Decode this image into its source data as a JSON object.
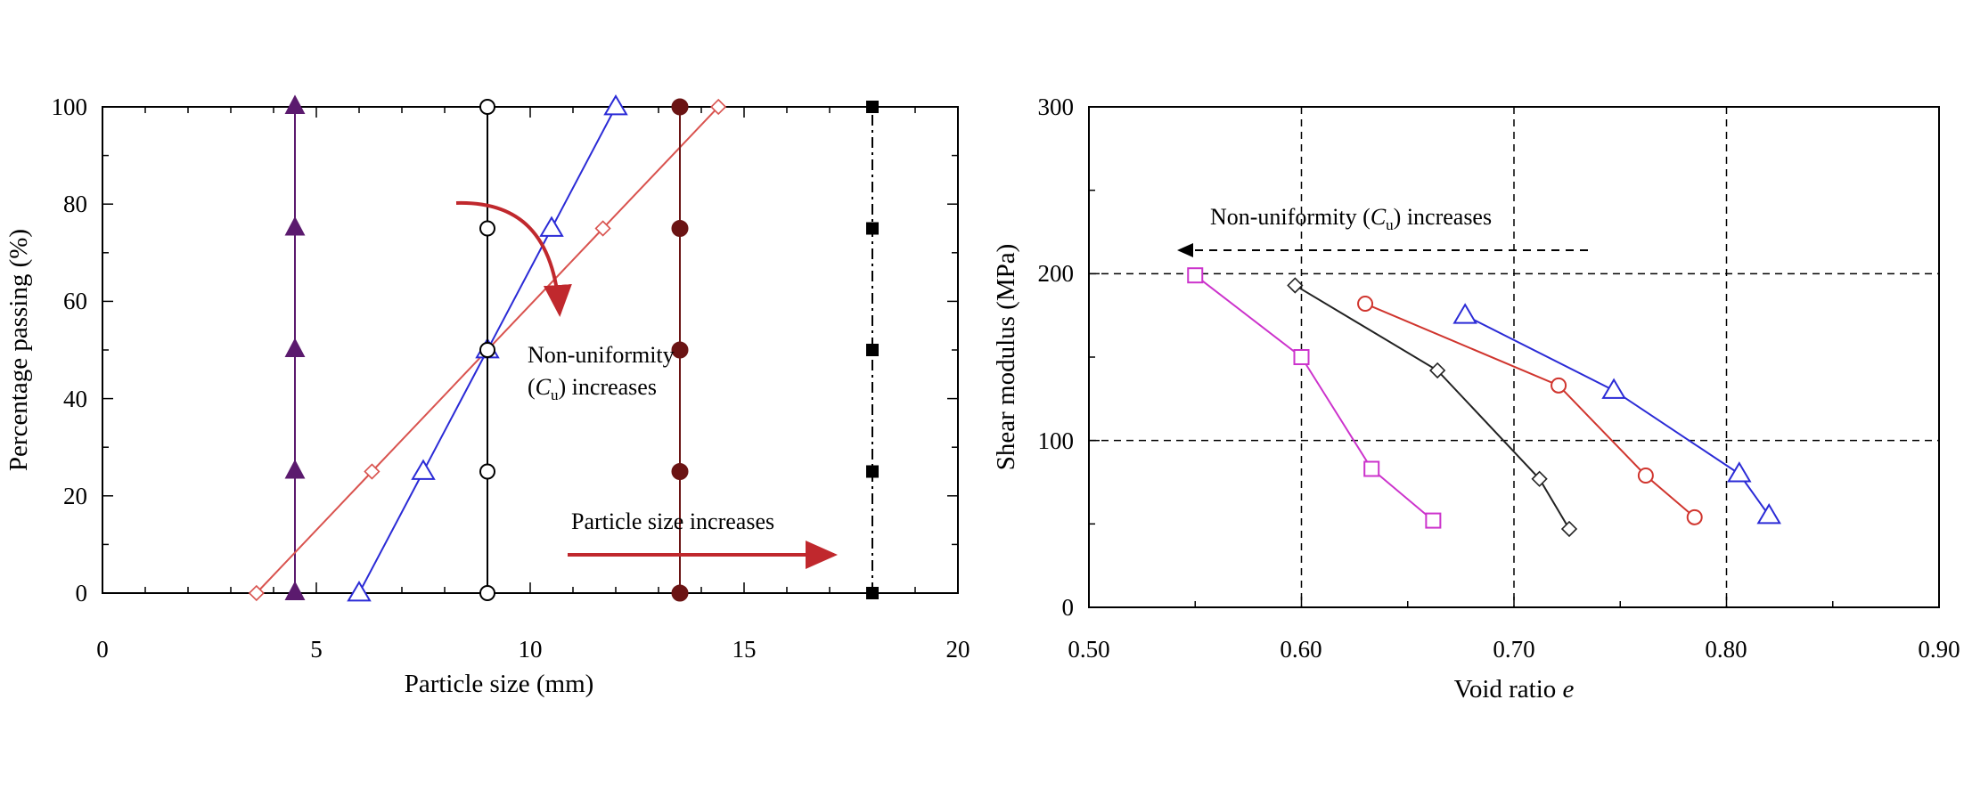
{
  "chart_data": [
    {
      "type": "line",
      "xlabel": "Particle size (mm)",
      "ylabel": "Percentage passing (%)",
      "xlim": [
        0,
        20
      ],
      "ylim": [
        0,
        100
      ],
      "x_ticks": [
        "0",
        "5",
        "10",
        "15",
        "20"
      ],
      "y_ticks": [
        "0",
        "20",
        "40",
        "60",
        "80",
        "100"
      ],
      "grid": false,
      "series": [
        {
          "marker": "filled-triangle",
          "color": "#5b1a6e",
          "dash": "solid",
          "points": [
            [
              4.5,
              0
            ],
            [
              4.5,
              25
            ],
            [
              4.5,
              50
            ],
            [
              4.5,
              75
            ],
            [
              4.5,
              100
            ]
          ]
        },
        {
          "marker": "open-diamond",
          "color": "#d9534f",
          "dash": "solid",
          "points": [
            [
              3.6,
              0
            ],
            [
              6.3,
              25
            ],
            [
              9.0,
              50
            ],
            [
              11.7,
              75
            ],
            [
              14.4,
              100
            ]
          ]
        },
        {
          "marker": "open-triangle",
          "color": "#2b2bd6",
          "dash": "solid",
          "points": [
            [
              6.0,
              0
            ],
            [
              7.5,
              25
            ],
            [
              9.0,
              50
            ],
            [
              10.5,
              75
            ],
            [
              12.0,
              100
            ]
          ]
        },
        {
          "marker": "open-circle",
          "color": "#000000",
          "dash": "solid",
          "points": [
            [
              9.0,
              0
            ],
            [
              9.0,
              25
            ],
            [
              9.0,
              50
            ],
            [
              9.0,
              75
            ],
            [
              9.0,
              100
            ]
          ]
        },
        {
          "marker": "filled-circle",
          "color": "#6b1414",
          "dash": "solid",
          "points": [
            [
              13.5,
              0
            ],
            [
              13.5,
              25
            ],
            [
              13.5,
              50
            ],
            [
              13.5,
              75
            ],
            [
              13.5,
              100
            ]
          ]
        },
        {
          "marker": "filled-square",
          "color": "#000000",
          "dash": "dashdot",
          "points": [
            [
              18.0,
              0
            ],
            [
              18.0,
              25
            ],
            [
              18.0,
              50
            ],
            [
              18.0,
              75
            ],
            [
              18.0,
              100
            ]
          ]
        }
      ],
      "annotations": {
        "cu_line1": "Non-uniformity",
        "cu_line2_pre": "(",
        "cu_line2_sym": "C",
        "cu_line2_sub": "u",
        "cu_line2_post": ") increases",
        "size_text": "Particle size increases",
        "arrow_color": "#c0282d"
      }
    },
    {
      "type": "line",
      "xlabel_text": "Void ratio ",
      "xlabel_var": "e",
      "ylabel": "Shear modulus (MPa)",
      "xlim": [
        0.5,
        0.9
      ],
      "ylim": [
        0,
        300
      ],
      "x_ticks": [
        "0.50",
        "0.60",
        "0.70",
        "0.80",
        "0.90"
      ],
      "y_ticks": [
        "0",
        "100",
        "200",
        "300"
      ],
      "grid": "dashed at x=0.60, 0.70, 0.80 and y=100, 200",
      "series": [
        {
          "marker": "open-square",
          "color": "#cc33cc",
          "points": [
            [
              0.55,
              199
            ],
            [
              0.6,
              150
            ],
            [
              0.633,
              83
            ],
            [
              0.662,
              52
            ]
          ]
        },
        {
          "marker": "open-diamond",
          "color": "#222222",
          "points": [
            [
              0.597,
              193
            ],
            [
              0.664,
              142
            ],
            [
              0.712,
              77
            ],
            [
              0.726,
              47
            ]
          ]
        },
        {
          "marker": "open-circle",
          "color": "#d0352e",
          "points": [
            [
              0.63,
              182
            ],
            [
              0.721,
              133
            ],
            [
              0.762,
              79
            ],
            [
              0.785,
              54
            ]
          ]
        },
        {
          "marker": "open-triangle",
          "color": "#2b2bd6",
          "points": [
            [
              0.677,
              175
            ],
            [
              0.747,
              130
            ],
            [
              0.806,
              80
            ],
            [
              0.82,
              55
            ]
          ]
        }
      ],
      "annotations": {
        "cu_pre": "Non-uniformity (",
        "cu_sym": "C",
        "cu_sub": "u",
        "cu_post": ") increases"
      }
    }
  ]
}
